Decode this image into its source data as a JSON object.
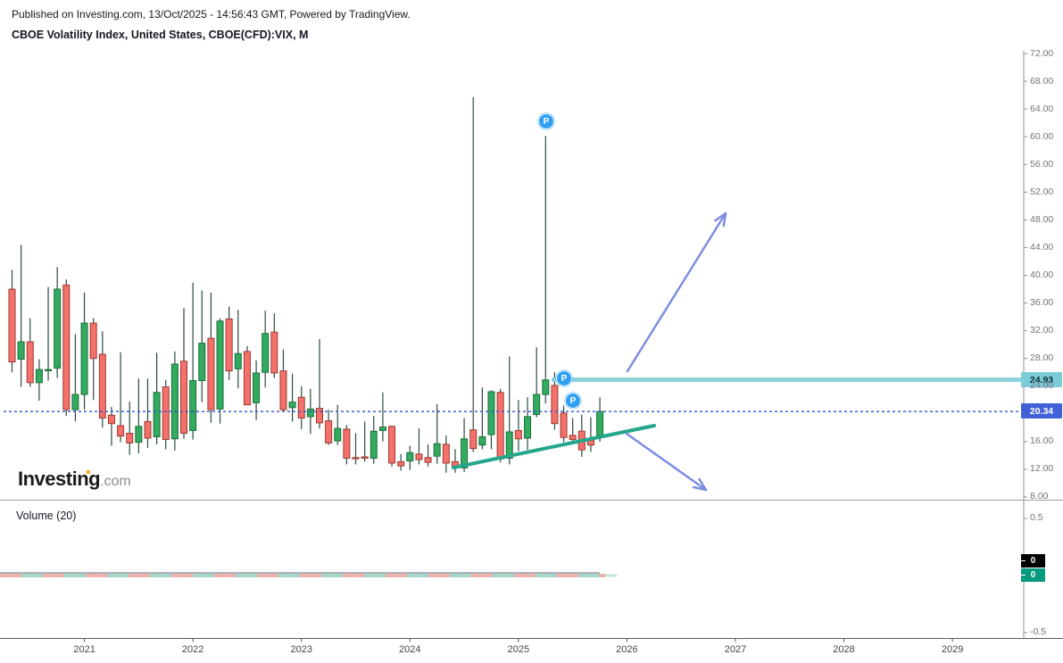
{
  "header": {
    "published_line": "Published on Investing.com, 13/Oct/2025 - 14:56:43 GMT, Powered by TradingView.",
    "instrument_line": "CBOE Volatility Index, United States, CBOE(CFD):VIX, M"
  },
  "watermark": {
    "brand": "Investing",
    "suffix": ".com"
  },
  "chart_data": {
    "type": "candlestick",
    "title": "CBOE Volatility Index, United States",
    "symbol": "CBOE(CFD):VIX",
    "timeframe": "M",
    "y_axis": {
      "ticks": [
        "72.00",
        "68.00",
        "64.00",
        "60.00",
        "56.00",
        "52.00",
        "48.00",
        "44.00",
        "40.00",
        "36.00",
        "32.00",
        "28.00",
        "24.00",
        "16.00",
        "12.00",
        "8.00"
      ],
      "range_top": 72.6,
      "range_bottom": 7.6,
      "grid": false
    },
    "x_axis": {
      "ticks": [
        "2021",
        "2022",
        "2023",
        "2024",
        "2025",
        "2026",
        "2027",
        "2028",
        "2029"
      ]
    },
    "columns": [
      "month",
      "open",
      "high",
      "low",
      "close"
    ],
    "series": [
      [
        "2020-05",
        38.0,
        40.8,
        26.0,
        27.5
      ],
      [
        "2020-06",
        27.9,
        44.4,
        23.9,
        30.4
      ],
      [
        "2020-07",
        30.4,
        33.8,
        23.9,
        24.5
      ],
      [
        "2020-08",
        24.5,
        27.9,
        21.9,
        26.4
      ],
      [
        "2020-09",
        26.4,
        38.3,
        24.8,
        26.4
      ],
      [
        "2020-10",
        26.6,
        41.2,
        25.2,
        38.0
      ],
      [
        "2020-11",
        38.6,
        39.4,
        19.7,
        20.6
      ],
      [
        "2020-12",
        20.6,
        31.5,
        18.9,
        22.8
      ],
      [
        "2021-01",
        22.8,
        37.5,
        20.6,
        33.1
      ],
      [
        "2021-02",
        33.1,
        33.8,
        22.0,
        28.0
      ],
      [
        "2021-03",
        28.6,
        31.9,
        18.0,
        19.4
      ],
      [
        "2021-04",
        19.8,
        21.0,
        15.4,
        18.6
      ],
      [
        "2021-05",
        18.3,
        28.9,
        15.9,
        16.8
      ],
      [
        "2021-06",
        17.2,
        21.8,
        14.1,
        15.8
      ],
      [
        "2021-07",
        15.9,
        25.1,
        14.3,
        18.2
      ],
      [
        "2021-08",
        18.9,
        25.1,
        15.1,
        16.5
      ],
      [
        "2021-09",
        16.7,
        28.8,
        15.6,
        23.1
      ],
      [
        "2021-10",
        23.9,
        24.9,
        14.9,
        16.3
      ],
      [
        "2021-11",
        16.4,
        29.0,
        14.7,
        27.2
      ],
      [
        "2021-12",
        27.6,
        35.3,
        16.4,
        17.2
      ],
      [
        "2022-01",
        17.6,
        38.9,
        16.3,
        24.8
      ],
      [
        "2022-02",
        24.8,
        37.8,
        21.7,
        30.2
      ],
      [
        "2022-03",
        30.9,
        37.5,
        18.7,
        20.6
      ],
      [
        "2022-04",
        20.7,
        33.8,
        18.6,
        33.4
      ],
      [
        "2022-05",
        33.7,
        35.5,
        24.9,
        26.2
      ],
      [
        "2022-06",
        26.5,
        35.0,
        23.7,
        28.7
      ],
      [
        "2022-07",
        29.0,
        29.8,
        21.4,
        21.3
      ],
      [
        "2022-08",
        21.6,
        27.7,
        19.1,
        25.9
      ],
      [
        "2022-09",
        26.0,
        34.9,
        23.8,
        31.6
      ],
      [
        "2022-10",
        31.8,
        34.5,
        25.2,
        25.9
      ],
      [
        "2022-11",
        26.2,
        29.3,
        20.3,
        20.6
      ],
      [
        "2022-12",
        20.9,
        25.8,
        18.9,
        21.7
      ],
      [
        "2023-01",
        22.4,
        24.0,
        17.8,
        19.4
      ],
      [
        "2023-02",
        19.6,
        23.6,
        17.1,
        20.7
      ],
      [
        "2023-03",
        20.8,
        30.8,
        17.9,
        18.7
      ],
      [
        "2023-04",
        19.0,
        20.6,
        15.5,
        15.8
      ],
      [
        "2023-05",
        16.1,
        21.3,
        15.5,
        17.9
      ],
      [
        "2023-06",
        17.8,
        18.4,
        12.7,
        13.6
      ],
      [
        "2023-07",
        13.7,
        17.2,
        12.7,
        13.6
      ],
      [
        "2023-08",
        13.8,
        18.9,
        13.1,
        13.6
      ],
      [
        "2023-09",
        13.6,
        19.7,
        12.8,
        17.5
      ],
      [
        "2023-10",
        17.6,
        23.1,
        16.0,
        18.1
      ],
      [
        "2023-11",
        18.2,
        18.3,
        12.4,
        12.9
      ],
      [
        "2023-12",
        13.1,
        14.2,
        11.8,
        12.5
      ],
      [
        "2024-01",
        13.2,
        15.4,
        11.9,
        14.4
      ],
      [
        "2024-02",
        14.2,
        17.9,
        12.7,
        13.4
      ],
      [
        "2024-03",
        13.7,
        15.6,
        12.4,
        13.0
      ],
      [
        "2024-04",
        13.9,
        21.4,
        12.8,
        15.7
      ],
      [
        "2024-05",
        15.6,
        16.9,
        11.5,
        12.9
      ],
      [
        "2024-06",
        13.1,
        14.9,
        11.5,
        12.4
      ],
      [
        "2024-07",
        12.2,
        19.4,
        11.6,
        16.4
      ],
      [
        "2024-08",
        17.7,
        65.7,
        14.5,
        15.0
      ],
      [
        "2024-09",
        15.5,
        23.8,
        14.9,
        16.7
      ],
      [
        "2024-10",
        17.0,
        23.4,
        14.9,
        23.2
      ],
      [
        "2024-11",
        23.1,
        23.6,
        13.0,
        13.5
      ],
      [
        "2024-12",
        13.6,
        28.3,
        12.7,
        17.4
      ],
      [
        "2025-01",
        17.6,
        22.0,
        14.6,
        16.4
      ],
      [
        "2025-02",
        16.5,
        22.4,
        14.8,
        19.6
      ],
      [
        "2025-03",
        19.9,
        29.6,
        19.5,
        22.8
      ],
      [
        "2025-04",
        22.8,
        60.1,
        21.5,
        24.9
      ],
      [
        "2025-05",
        24.1,
        26.0,
        17.7,
        18.6
      ],
      [
        "2025-06",
        20.1,
        21.2,
        15.9,
        16.6
      ],
      [
        "2025-07",
        16.9,
        19.4,
        15.6,
        16.3
      ],
      [
        "2025-08",
        17.5,
        19.9,
        13.8,
        14.8
      ],
      [
        "2025-09",
        16.2,
        19.5,
        14.5,
        15.5
      ],
      [
        "2025-10",
        16.9,
        22.4,
        16.0,
        20.34
      ]
    ],
    "volume_pane": {
      "label": "Volume (20)",
      "ticks": [
        "0.5",
        "-0.5"
      ],
      "badges": [
        {
          "label": "0",
          "bg": "#000000",
          "fg": "#ffffff"
        },
        {
          "label": "0",
          "bg": "#089981",
          "fg": "#ffffff"
        }
      ],
      "strip_colors": [
        "#edb0ab",
        "#a5d7c9"
      ],
      "strip_tail_color": "#c2e4db",
      "ma_line_color": "#aeb1b9"
    },
    "annotations": {
      "resistance_line": {
        "label": "24.93",
        "value": 24.93,
        "color": "#8fd2dd",
        "badge_color": "#7ccbd9"
      },
      "last_price": {
        "label": "20.34",
        "value": 20.34,
        "badge_color": "#4161d8",
        "line_color": "#2e52d3"
      },
      "trendline": {
        "color": "#23a68a",
        "from_price": 12.3,
        "to_price": 18.3
      },
      "arrows": [
        {
          "direction": "up"
        },
        {
          "direction": "down"
        }
      ],
      "markers": [
        {
          "label": "P"
        },
        {
          "label": "P"
        },
        {
          "label": "P"
        }
      ],
      "colors": {
        "up_candle": "#32ab5f",
        "up_border": "#1b6e3b",
        "down_candle": "#f4716b",
        "down_border": "#9c3a32",
        "wick": "#2c4b3d",
        "arrow": "#7d8ee2"
      }
    }
  }
}
